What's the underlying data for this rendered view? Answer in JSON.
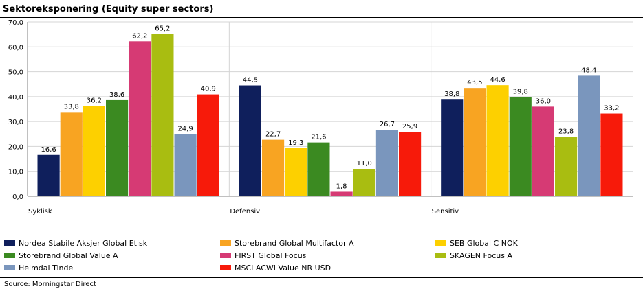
{
  "header": {
    "title": "Sektoreksponering (Equity super sectors)"
  },
  "footer": {
    "source": "Source: Morningstar Direct"
  },
  "chart_data": {
    "type": "bar",
    "title": "Sektoreksponering (Equity super sectors)",
    "categories": [
      "Syklisk",
      "Defensiv",
      "Sensitiv"
    ],
    "ylim": [
      0,
      70
    ],
    "yticks": [
      "0,0",
      "10,0",
      "20,0",
      "30,0",
      "40,0",
      "50,0",
      "60,0",
      "70,0"
    ],
    "grid": true,
    "legend_position": "bottom",
    "series": [
      {
        "name": "Nordea Stabile Aksjer Global Etisk",
        "color": "#0f1f5c",
        "values": [
          16.6,
          44.5,
          38.8
        ],
        "labels": [
          "16,6",
          "44,5",
          "38,8"
        ]
      },
      {
        "name": "Storebrand Global Multifactor A",
        "color": "#f8a422",
        "values": [
          33.8,
          22.7,
          43.5
        ],
        "labels": [
          "33,8",
          "22,7",
          "43,5"
        ]
      },
      {
        "name": "SEB Global C NOK",
        "color": "#fdd000",
        "values": [
          36.2,
          19.3,
          44.6
        ],
        "labels": [
          "36,2",
          "19,3",
          "44,6"
        ]
      },
      {
        "name": "Storebrand Global Value A",
        "color": "#3b8a21",
        "values": [
          38.6,
          21.6,
          39.8
        ],
        "labels": [
          "38,6",
          "21,6",
          "39,8"
        ]
      },
      {
        "name": "FIRST Global Focus",
        "color": "#d63a74",
        "values": [
          62.2,
          1.8,
          36.0
        ],
        "labels": [
          "62,2",
          "1,8",
          "36,0"
        ]
      },
      {
        "name": "SKAGEN Focus A",
        "color": "#a9bd11",
        "values": [
          65.2,
          11.0,
          23.8
        ],
        "labels": [
          "65,2",
          "11,0",
          "23,8"
        ]
      },
      {
        "name": "Heimdal Tinde",
        "color": "#7a96bd",
        "values": [
          24.9,
          26.7,
          48.4
        ],
        "labels": [
          "24,9",
          "26,7",
          "48,4"
        ]
      },
      {
        "name": "MSCI ACWI Value NR USD",
        "color": "#f71a0a",
        "values": [
          40.9,
          25.9,
          33.2
        ],
        "labels": [
          "40,9",
          "25,9",
          "33,2"
        ]
      }
    ]
  }
}
